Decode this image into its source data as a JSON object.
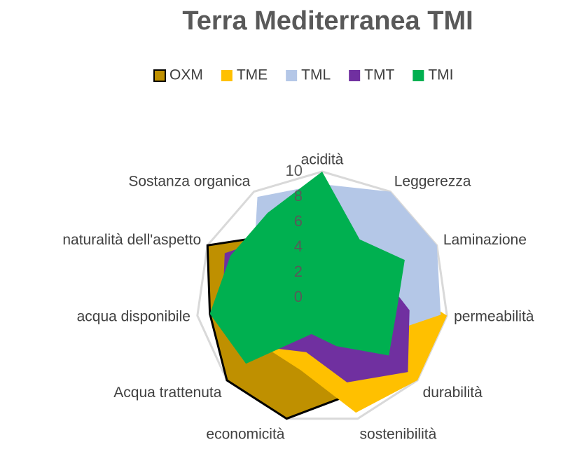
{
  "chart_data": {
    "type": "radar",
    "title": "Terra Mediterranea TMI",
    "categories": [
      "acidità",
      "Leggerezza",
      "Laminazione",
      "permeabilità",
      "durabilità",
      "sostenibilità",
      "economicità",
      "Acqua trattenuta",
      "acqua disponibile",
      "naturalità dell'aspetto",
      "Sostanza organica"
    ],
    "series": [
      {
        "name": "OXM",
        "color": "#bf9000",
        "values": [
          3,
          3,
          3,
          4,
          5,
          8,
          10,
          10,
          9,
          10,
          6
        ]
      },
      {
        "name": "TME",
        "color": "#ffc000",
        "values": [
          4,
          4,
          5,
          10,
          10,
          9.5,
          6,
          6,
          6,
          5,
          4
        ]
      },
      {
        "name": "TML",
        "color": "#b4c7e7",
        "values": [
          9,
          10,
          10,
          9.5,
          5,
          3,
          3,
          5,
          6,
          6,
          9.5
        ]
      },
      {
        "name": "TMT",
        "color": "#7030a0",
        "values": [
          6,
          4,
          5,
          7,
          9,
          7,
          4.5,
          6,
          8,
          8.5,
          6
        ]
      },
      {
        "name": "TMI",
        "color": "#00b050",
        "values": [
          10,
          5.5,
          7.2,
          6,
          7,
          4,
          3,
          8,
          9,
          8,
          8
        ]
      }
    ],
    "ylim": [
      0,
      10
    ],
    "yticks": [
      0,
      2,
      4,
      6,
      8,
      10
    ]
  }
}
